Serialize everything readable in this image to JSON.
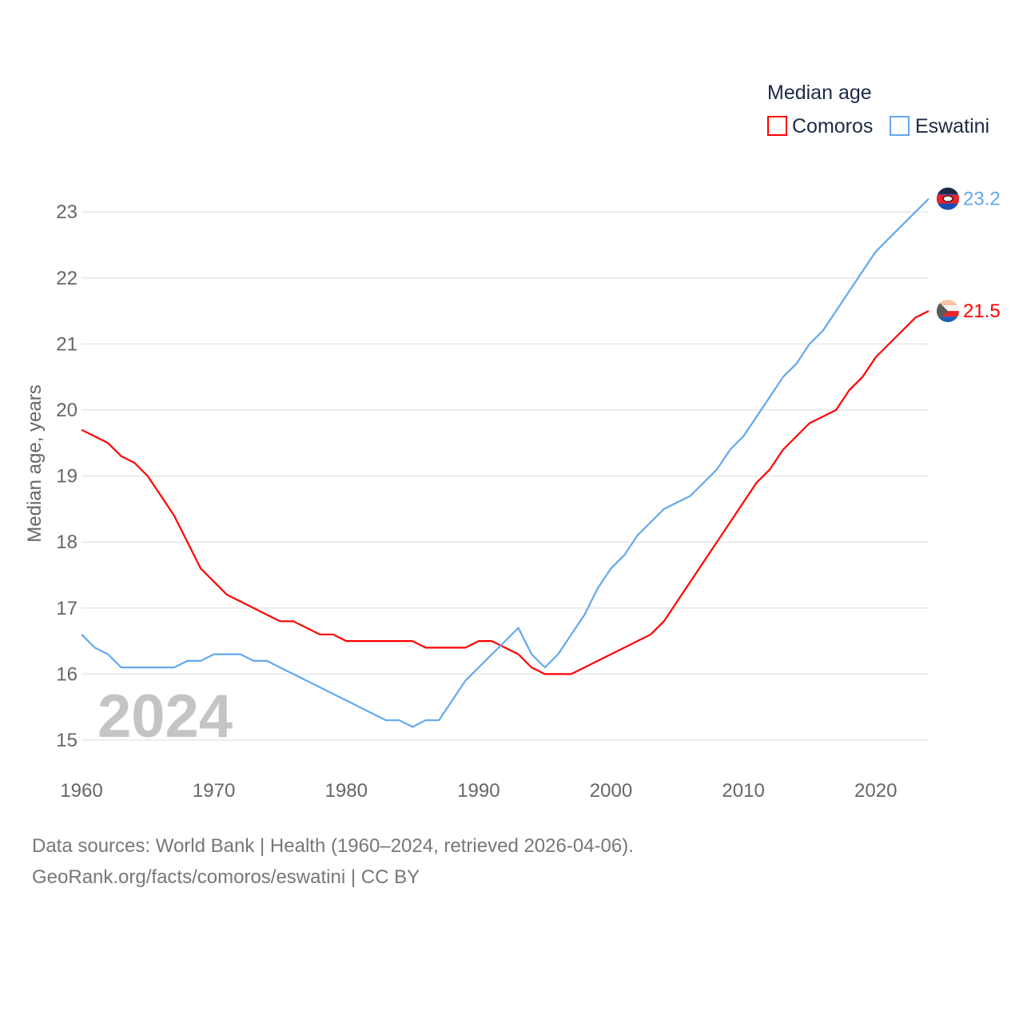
{
  "chart_data": {
    "type": "line",
    "title": "",
    "xlabel": "",
    "ylabel": "Median age, years",
    "xlim": [
      1960,
      2024
    ],
    "ylim": [
      15,
      23.4
    ],
    "yticks": [
      15,
      16,
      17,
      18,
      19,
      20,
      21,
      22,
      23
    ],
    "xticks": [
      1960,
      1970,
      1980,
      1990,
      2000,
      2010,
      2020
    ],
    "grid": true,
    "legend": {
      "title": "Median age",
      "placement": "top-right"
    },
    "year_watermark": "2024",
    "x": [
      1960,
      1961,
      1962,
      1963,
      1964,
      1965,
      1966,
      1967,
      1968,
      1969,
      1970,
      1971,
      1972,
      1973,
      1974,
      1975,
      1976,
      1977,
      1978,
      1979,
      1980,
      1981,
      1982,
      1983,
      1984,
      1985,
      1986,
      1987,
      1988,
      1989,
      1990,
      1991,
      1992,
      1993,
      1994,
      1995,
      1996,
      1997,
      1998,
      1999,
      2000,
      2001,
      2002,
      2003,
      2004,
      2005,
      2006,
      2007,
      2008,
      2009,
      2010,
      2011,
      2012,
      2013,
      2014,
      2015,
      2016,
      2017,
      2018,
      2019,
      2020,
      2021,
      2022,
      2023,
      2024
    ],
    "series": [
      {
        "name": "Comoros",
        "color": "#ff0000",
        "end_label": "21.5",
        "values": [
          19.7,
          19.6,
          19.5,
          19.3,
          19.2,
          19.0,
          18.7,
          18.4,
          18.0,
          17.6,
          17.4,
          17.2,
          17.1,
          17.0,
          16.9,
          16.8,
          16.8,
          16.7,
          16.6,
          16.6,
          16.5,
          16.5,
          16.5,
          16.5,
          16.5,
          16.5,
          16.4,
          16.4,
          16.4,
          16.4,
          16.5,
          16.5,
          16.4,
          16.3,
          16.1,
          16.0,
          16.0,
          16.0,
          16.1,
          16.2,
          16.3,
          16.4,
          16.5,
          16.6,
          16.8,
          17.1,
          17.4,
          17.7,
          18.0,
          18.3,
          18.6,
          18.9,
          19.1,
          19.4,
          19.6,
          19.8,
          19.9,
          20.0,
          20.3,
          20.5,
          20.8,
          21.0,
          21.2,
          21.4,
          21.5
        ]
      },
      {
        "name": "Eswatini",
        "color": "#63a8ee",
        "end_label": "23.2",
        "values": [
          16.6,
          16.4,
          16.3,
          16.1,
          16.1,
          16.1,
          16.1,
          16.1,
          16.2,
          16.2,
          16.3,
          16.3,
          16.3,
          16.2,
          16.2,
          16.1,
          16.0,
          15.9,
          15.8,
          15.7,
          15.6,
          15.5,
          15.4,
          15.3,
          15.3,
          15.2,
          15.3,
          15.3,
          15.6,
          15.9,
          16.1,
          16.3,
          16.5,
          16.7,
          16.3,
          16.1,
          16.3,
          16.6,
          16.9,
          17.3,
          17.6,
          17.8,
          18.1,
          18.3,
          18.5,
          18.6,
          18.7,
          18.9,
          19.1,
          19.4,
          19.6,
          19.9,
          20.2,
          20.5,
          20.7,
          21.0,
          21.2,
          21.5,
          21.8,
          22.1,
          22.4,
          22.6,
          22.8,
          23.0,
          23.2
        ]
      }
    ]
  },
  "footer": {
    "line1": "Data sources: World Bank | Health (1960–2024, retrieved 2026-04-06).",
    "line2": "GeoRank.org/facts/comoros/eswatini | CC BY"
  }
}
